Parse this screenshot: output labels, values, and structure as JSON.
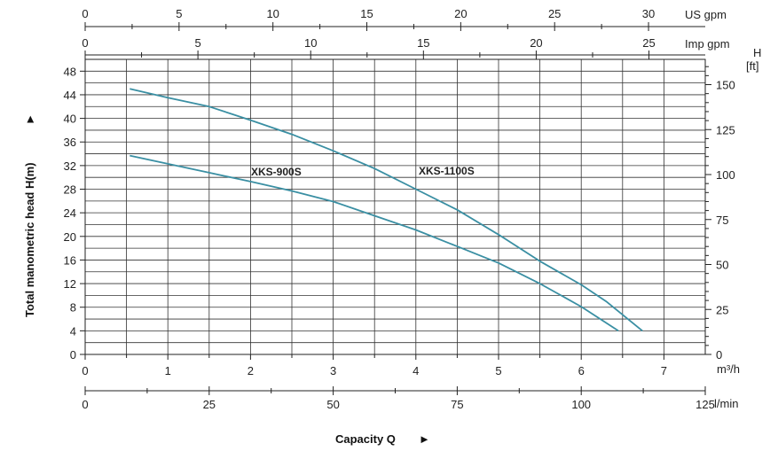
{
  "chart_data": {
    "type": "line",
    "xlabel": "Capacity Q",
    "ylabel": "Total manometric head H(m)",
    "xlim": [
      0,
      7.5
    ],
    "ylim": [
      0,
      50
    ],
    "grid": true,
    "axes": {
      "primary_x": {
        "unit": "m³/h",
        "ticks": [
          "0",
          "1",
          "2",
          "3",
          "4",
          "5",
          "6",
          "7"
        ]
      },
      "lmin_x": {
        "unit": "l/min",
        "ticks": [
          "0",
          "25",
          "50",
          "75",
          "100",
          "125"
        ]
      },
      "imp_x": {
        "unit": "Imp gpm",
        "ticks": [
          "0",
          "5",
          "10",
          "15",
          "20",
          "25"
        ]
      },
      "us_x": {
        "unit": "US gpm",
        "ticks": [
          "0",
          "5",
          "10",
          "15",
          "20",
          "25",
          "30"
        ]
      },
      "left_y": {
        "ticks": [
          "0",
          "4",
          "8",
          "12",
          "16",
          "20",
          "24",
          "28",
          "32",
          "36",
          "40",
          "44",
          "48"
        ]
      },
      "right_y": {
        "unit": "H",
        "unit2": "[ft]",
        "ticks": [
          "0",
          "25",
          "50",
          "75",
          "100",
          "125",
          "150"
        ]
      }
    },
    "series": [
      {
        "name": "XKS-900S",
        "color": "#3a8fa3",
        "x": [
          0.54,
          1.0,
          1.5,
          2.0,
          2.5,
          3.0,
          3.5,
          4.0,
          4.5,
          5.0,
          5.5,
          6.0,
          6.45
        ],
        "y": [
          33.7,
          32.3,
          30.8,
          29.3,
          27.7,
          25.9,
          23.5,
          21.1,
          18.3,
          15.5,
          12.0,
          8.1,
          4.0
        ]
      },
      {
        "name": "XKS-1100S",
        "color": "#3a8fa3",
        "x": [
          0.54,
          1.0,
          1.5,
          2.0,
          2.5,
          3.0,
          3.5,
          4.0,
          4.5,
          5.0,
          5.5,
          6.0,
          6.3,
          6.74
        ],
        "y": [
          45.0,
          43.5,
          42.0,
          39.7,
          37.3,
          34.5,
          31.5,
          28.0,
          24.5,
          20.3,
          15.8,
          11.8,
          9.0,
          4.0
        ]
      }
    ],
    "labels": {
      "note_arrow": "►",
      "ylabel_arrow": "►"
    }
  }
}
